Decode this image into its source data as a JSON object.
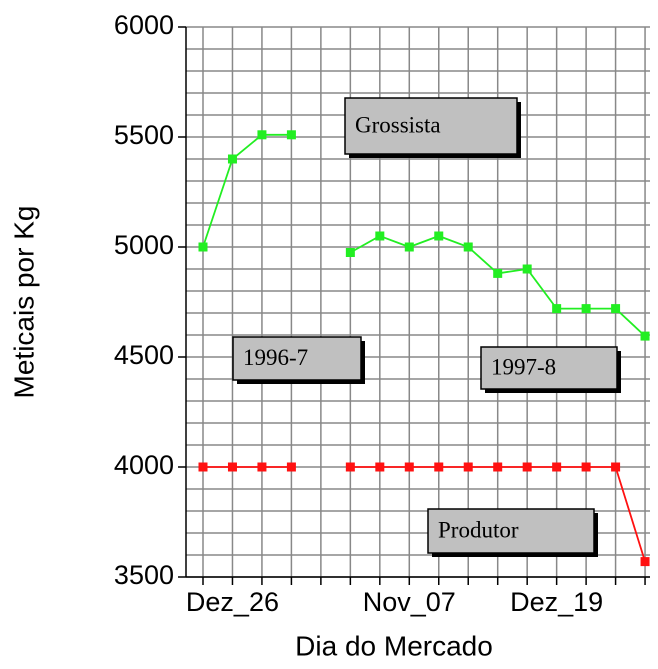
{
  "chart_data": {
    "type": "line",
    "xlabel": "Dia do Mercado",
    "ylabel": "Meticais por Kg",
    "categories": [
      null,
      "Dez_26",
      null,
      null,
      null,
      null,
      null,
      "Nov_07",
      null,
      null,
      null,
      null,
      "Dez_19",
      null,
      null,
      null
    ],
    "series": [
      {
        "name": "Grossista",
        "color": "#22ee22",
        "values": [
          5000,
          5400,
          5510,
          5510,
          null,
          4975,
          5050,
          5000,
          5050,
          5000,
          4880,
          4900,
          4720,
          4720,
          4720,
          4595
        ]
      },
      {
        "name": "Produtor",
        "color": "#ff1111",
        "values": [
          4000,
          4000,
          4000,
          4000,
          null,
          4000,
          4000,
          4000,
          4000,
          4000,
          4000,
          4000,
          4000,
          4000,
          4000,
          3570
        ]
      }
    ],
    "annotations": [
      "Grossista",
      "1996-7",
      "1997-8",
      "Produtor"
    ],
    "ylim": [
      3500,
      6000
    ],
    "yticks": [
      3500,
      4000,
      4500,
      5000,
      5500,
      6000
    ],
    "yminorticks": [
      3600,
      3700,
      3800,
      3900,
      4100,
      4200,
      4300,
      4400,
      4600,
      4700,
      4800,
      4900,
      5100,
      5200,
      5300,
      5400,
      5600,
      5700,
      5800,
      5900
    ],
    "grid": true
  }
}
